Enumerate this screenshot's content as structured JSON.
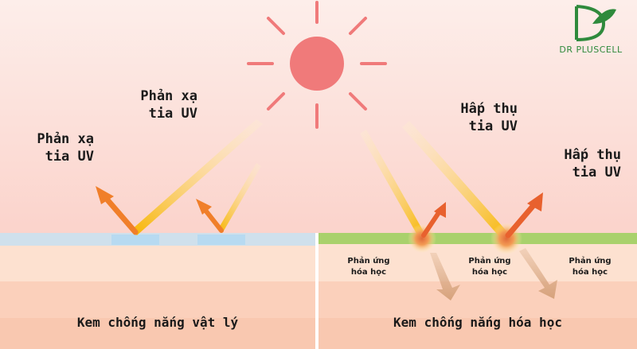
{
  "brand": {
    "name": "DR PLUSCELL",
    "color": "#2f8a3c"
  },
  "left_panel": {
    "caption": "Kem chống nắng vật lý",
    "label_outer": [
      "Phản xạ",
      "tia UV"
    ],
    "label_inner": [
      "Phản xạ",
      "tia UV"
    ]
  },
  "right_panel": {
    "caption": "Kem chống nắng hóa học",
    "label_inner": [
      "Hấp thụ",
      "tia UV"
    ],
    "label_outer": [
      "Hấp thụ",
      "tia UV"
    ],
    "reactions": [
      [
        "Phản ứng",
        "hóa học"
      ],
      [
        "Phản ứng",
        "hóa học"
      ],
      [
        "Phản ứng",
        "hóa học"
      ]
    ]
  },
  "colors": {
    "sky_top": "#fdecea",
    "sky_bottom": "#fbd6cf",
    "sun": "#f07a7a",
    "ray": "#f6b400",
    "arrow": "#f07f2a",
    "physical_layer": "#c9dbe8",
    "chemical_layer": "#a8d06a",
    "skin_light": "#fcdcc9",
    "skin_dark": "#f7c3a8"
  }
}
